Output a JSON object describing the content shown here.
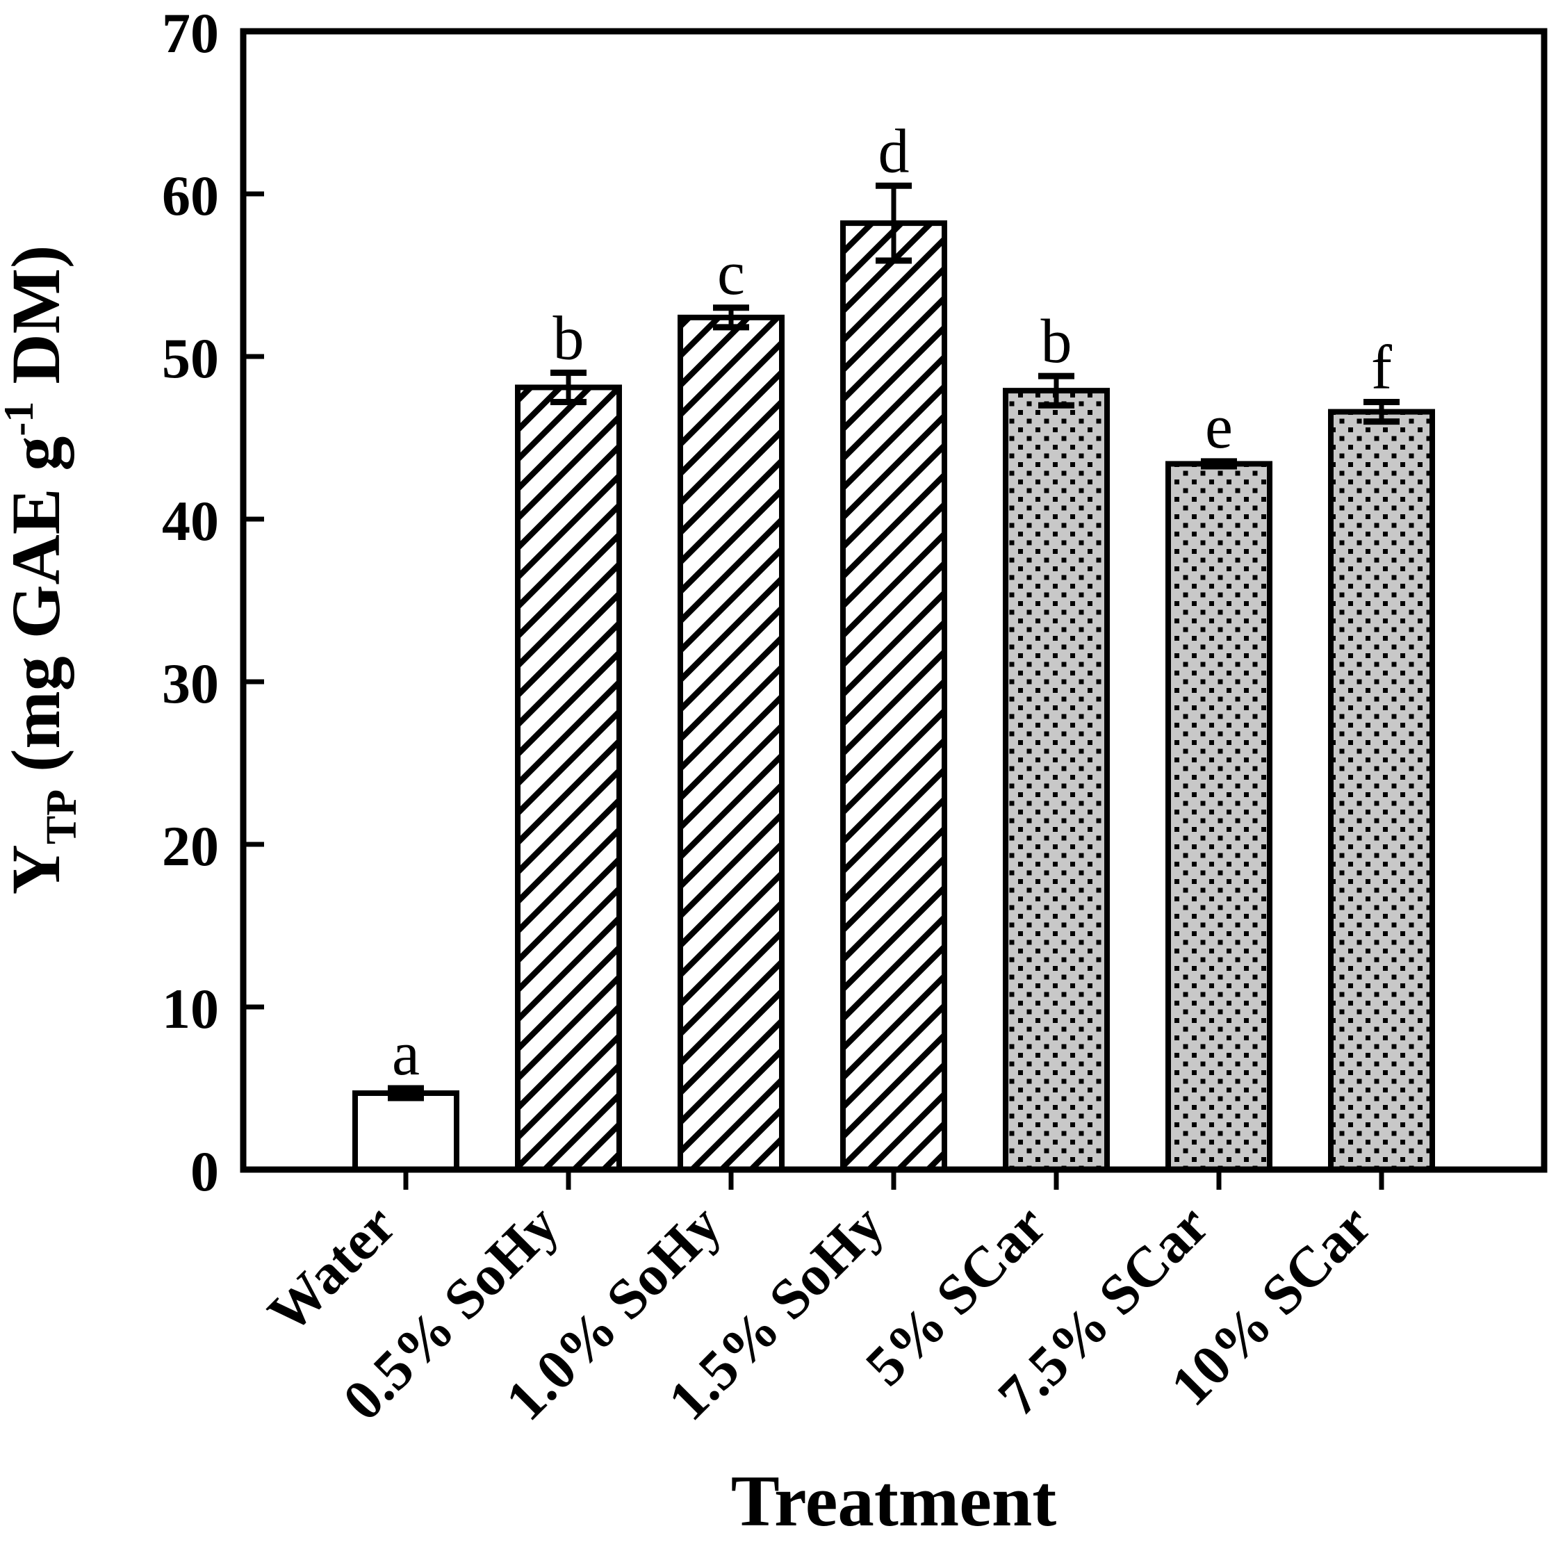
{
  "chart_data": {
    "type": "bar",
    "title": "",
    "xlabel": "Treatment",
    "ylabel": "Y_TP (mg GAE g^-1 DM)",
    "ylabel_parts": {
      "main": "Y",
      "sub": "TP",
      "mid": " (mg GAE g",
      "sup": "-1",
      "end": " DM)"
    },
    "categories": [
      "Water",
      "0.5% SoHy",
      "1.0% SoHy",
      "1.5% SoHy",
      "5% SCar",
      "7.5% SCar",
      "10% SCar"
    ],
    "values": [
      4.7,
      48.1,
      52.4,
      58.2,
      47.9,
      43.4,
      46.6
    ],
    "errors": [
      0.3,
      0.9,
      0.6,
      2.3,
      0.9,
      0.15,
      0.6
    ],
    "sig_letters": [
      "a",
      "b",
      "c",
      "d",
      "b",
      "e",
      "f"
    ],
    "bar_styles": [
      "plain",
      "hatch",
      "hatch",
      "hatch",
      "dots",
      "dots",
      "dots"
    ],
    "ylim": [
      0,
      70
    ],
    "yticks": [
      0,
      10,
      20,
      30,
      40,
      50,
      60,
      70
    ],
    "grid": false,
    "legend": "none",
    "colors": {
      "ink": "#000000",
      "plain_bar_fill": "#ffffff",
      "dots_bar_bg": "#c8c8c8",
      "background": "#ffffff"
    }
  }
}
